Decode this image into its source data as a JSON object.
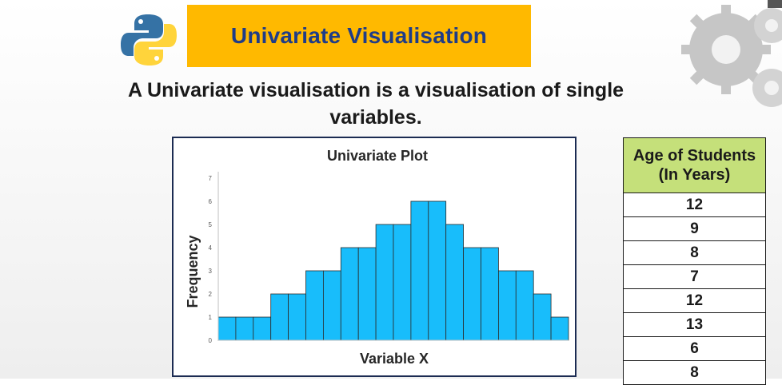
{
  "header": {
    "title": "Univariate Visualisation",
    "title_color": "#1f3c88",
    "title_bg": "#ffb900",
    "logo_icon": "python-logo-icon",
    "decor_icon": "gears-icon"
  },
  "subtitle": {
    "line1": "A Univariate visualisation is a visualisation of single",
    "line2": "variables."
  },
  "chart_data": {
    "type": "bar",
    "title": "Univariate Plot",
    "xlabel": "Variable X",
    "ylabel": "Frequency",
    "values": [
      1,
      1,
      1,
      2,
      2,
      3,
      3,
      4,
      4,
      5,
      5,
      6,
      6,
      5,
      4,
      4,
      3,
      3,
      2,
      1
    ],
    "ylim": [
      0,
      7
    ],
    "yticks": [
      "0",
      "1",
      "2",
      "3",
      "4",
      "5",
      "6",
      "7"
    ],
    "bar_color": "#18bdfb",
    "grid": false,
    "legend": "none"
  },
  "table": {
    "header_line1": "Age of Students",
    "header_line2": "(In Years)",
    "header_bg": "#c5e07a",
    "rows": [
      "12",
      "9",
      "8",
      "7",
      "12",
      "13",
      "6",
      "8"
    ]
  }
}
